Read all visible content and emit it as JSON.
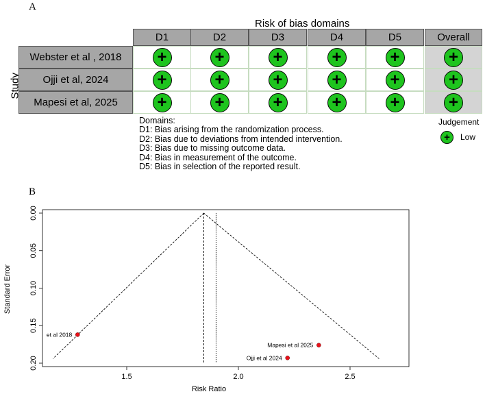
{
  "panels": {
    "a": "A",
    "b": "B"
  },
  "risk_of_bias": {
    "title": "Risk of bias domains",
    "row_axis_label": "Study",
    "columns": [
      "D1",
      "D2",
      "D3",
      "D4",
      "D5",
      "Overall"
    ],
    "studies": [
      {
        "name": "Webster et al , 2018",
        "judgements": [
          "+",
          "+",
          "+",
          "+",
          "+",
          "+"
        ]
      },
      {
        "name": "Ojji et al, 2024",
        "judgements": [
          "+",
          "+",
          "+",
          "+",
          "+",
          "+"
        ]
      },
      {
        "name": "Mapesi et al, 2025",
        "judgements": [
          "+",
          "+",
          "+",
          "+",
          "+",
          "+"
        ]
      }
    ],
    "domains_heading": "Domains:",
    "domain_definitions": [
      "D1: Bias arising from the randomization process.",
      "D2: Bias due to deviations from intended intervention.",
      "D3: Bias due to missing outcome data.",
      "D4: Bias in measurement of the outcome.",
      "D5: Bias in selection of the reported result."
    ],
    "judgement_legend": {
      "title": "Judgement",
      "symbol": "+",
      "label": "Low"
    },
    "colors": {
      "low": "#1ec41e",
      "header": "#a6a6a6",
      "overall": "#d4d4d4"
    }
  },
  "chart_data": {
    "type": "scatter",
    "subtype": "funnel plot",
    "xlabel": "Risk Ratio",
    "ylabel": "Standard Error",
    "xlim": [
      1.1,
      2.72
    ],
    "ylim": [
      0.0,
      0.2
    ],
    "y_inverted": true,
    "x_ticks": [
      "1.5",
      "2.0",
      "2.5"
    ],
    "x_tick_values": [
      1.5,
      2.0,
      2.5
    ],
    "y_ticks": [
      "0.00",
      "0.05",
      "0.10",
      "0.15",
      "0.20"
    ],
    "y_tick_values": [
      0.0,
      0.05,
      0.1,
      0.15,
      0.2
    ],
    "pooled_estimate": 1.845,
    "second_reference_line": 1.9,
    "funnel_bottom_se": 0.194,
    "funnel_bottom_x": [
      1.17,
      2.63
    ],
    "points": [
      {
        "label": "et al 2018",
        "x": 1.28,
        "y": 0.162
      },
      {
        "label": "Mapesi et al 2025",
        "x": 2.36,
        "y": 0.176
      },
      {
        "label": "Ojji et al 2024",
        "x": 2.22,
        "y": 0.193
      }
    ],
    "point_color": "#e8111a",
    "grid": false
  }
}
